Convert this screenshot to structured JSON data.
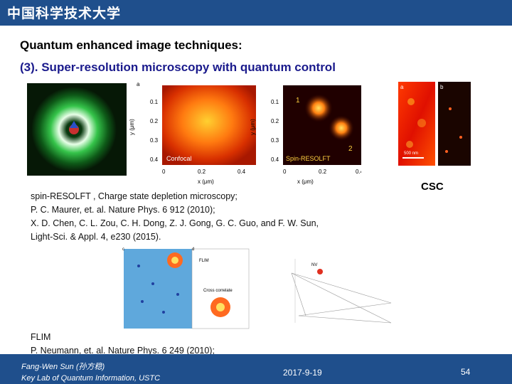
{
  "header": {
    "logo_text": "中国科学技术大学"
  },
  "slide": {
    "title": "Quantum enhanced image techniques:",
    "subtitle": "(3). Super-resolution microscopy with quantum control"
  },
  "figure_top": {
    "panel_label": "a",
    "confocal_label": "Confocal",
    "spin_label": "Spin-RESOLFT",
    "spot1": "1",
    "spot2": "2",
    "ylabel": "y (μm)",
    "xlabel": "x (μm)",
    "ticks_y": [
      "0.1",
      "0.2",
      "0.3",
      "0.4"
    ],
    "ticks_x": [
      "0",
      "0.2",
      "0.4"
    ]
  },
  "figure_csc": {
    "label_a": "a",
    "label_b": "b",
    "scale_a": "500 nm",
    "label": "CSC"
  },
  "refs_top": [
    "spin-RESOLFT , Charge state depletion microscopy;",
    "P. C. Maurer, et. al. Nature Phys. 6 912 (2010);",
    "X. D. Chen, C. L. Zou, C. H. Dong, Z. J. Gong, G. C. Guo, and F. W. Sun,",
    "Light-Sci. & Appl. 4, e230 (2015)."
  ],
  "figure_flim": {
    "label_c": "c",
    "label_d": "d",
    "flim": "FLIM",
    "cross": "Cross correlate",
    "nv": "NV"
  },
  "refs_bottom": [
    "FLIM",
    "P. Neumann, et. al. Nature Phys. 6 249 (2010);"
  ],
  "footer": {
    "author": "Fang-Wen Sun (孙方稳)",
    "lab": "Key Lab of Quantum Information, USTC",
    "date": "2017-9-19",
    "page": "54"
  },
  "colors": {
    "bar": "#1f4f8c",
    "subtitle": "#1a1a8c"
  }
}
